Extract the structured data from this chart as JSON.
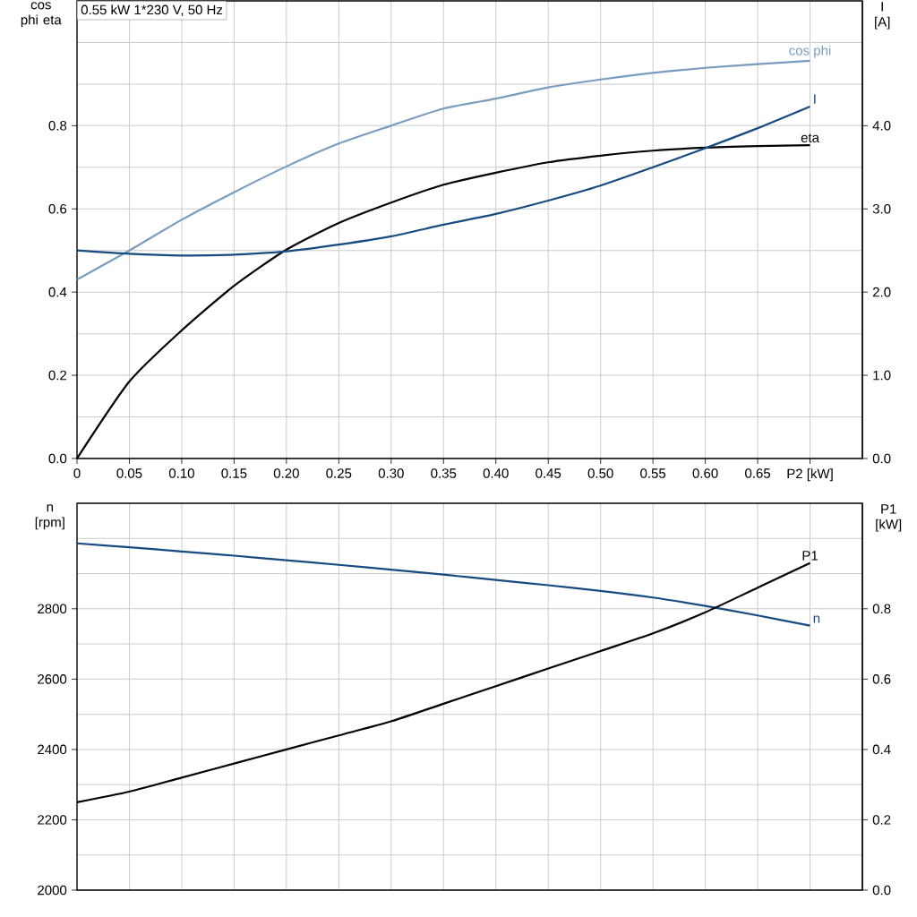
{
  "chart_data": [
    {
      "type": "line",
      "title": "0.55 kW   1*230 V, 50 Hz",
      "ylabel": "cos phi eta",
      "y2label": "I [A]",
      "grid": true,
      "x": [
        0,
        0.05,
        0.1,
        0.15,
        0.2,
        0.25,
        0.3,
        0.35,
        0.4,
        0.45,
        0.5,
        0.55,
        0.6,
        0.65,
        0.7
      ],
      "xlim": [
        0,
        0.75
      ],
      "xticks": [
        0,
        0.05,
        {
          "value": 0.1,
          "label": "0.10"
        },
        0.15,
        {
          "value": 0.2,
          "label": "0.20"
        },
        0.25,
        {
          "value": 0.3,
          "label": "0.30"
        },
        0.35,
        {
          "value": 0.4,
          "label": "0.40"
        },
        0.45,
        {
          "value": 0.5,
          "label": "0.50"
        },
        0.55,
        {
          "value": 0.6,
          "label": "0.60"
        },
        0.65,
        {
          "value": 0.7,
          "label": "P2 [kW]"
        }
      ],
      "ylim": [
        0,
        1.1
      ],
      "yticks": [
        {
          "value": 0,
          "label": "0.0"
        },
        {
          "value": 0.1,
          "label": null
        },
        0.2,
        {
          "value": 0.3,
          "label": null
        },
        0.4,
        {
          "value": 0.5,
          "label": null
        },
        0.6,
        {
          "value": 0.7,
          "label": null
        },
        0.8,
        {
          "value": 0.9,
          "label": null
        },
        {
          "value": 1.0,
          "label": null
        }
      ],
      "y2lim": [
        0,
        5.5
      ],
      "y2ticks": [
        {
          "value": 0,
          "label": "0.0"
        },
        {
          "value": 1,
          "label": "1.0"
        },
        {
          "value": 2,
          "label": "2.0"
        },
        {
          "value": 3,
          "label": "3.0"
        },
        {
          "value": 4,
          "label": "4.0"
        }
      ],
      "series": [
        {
          "name": "cos phi",
          "color": "#7a9cbf",
          "values": [
            0.43,
            0.5,
            0.574,
            0.64,
            0.702,
            0.757,
            0.8,
            0.841,
            0.865,
            0.892,
            0.911,
            0.927,
            0.939,
            0.948,
            0.956
          ]
        },
        {
          "name": "I",
          "color": "#174a80",
          "axis": "y2",
          "values": [
            2.5,
            2.46,
            2.44,
            2.45,
            2.49,
            2.57,
            2.67,
            2.81,
            2.94,
            3.1,
            3.28,
            3.5,
            3.73,
            3.97,
            4.23
          ]
        },
        {
          "name": "eta",
          "color": "#000000",
          "values": [
            0,
            0.185,
            0.308,
            0.415,
            0.502,
            0.566,
            0.615,
            0.658,
            0.687,
            0.712,
            0.728,
            0.74,
            0.747,
            0.751,
            0.753
          ]
        }
      ]
    },
    {
      "type": "line",
      "ylabel": "n [rpm]",
      "y2label": "P1 [kW]",
      "grid": true,
      "tick_labels": "y",
      "x": [
        0,
        0.05,
        0.1,
        0.15,
        0.2,
        0.25,
        0.3,
        0.35,
        0.4,
        0.45,
        0.5,
        0.55,
        0.6,
        0.65,
        0.7
      ],
      "xlim": [
        0,
        0.75
      ],
      "xticks": [
        0,
        0.05,
        0.1,
        0.15,
        0.2,
        0.25,
        0.3,
        0.35,
        0.4,
        0.45,
        0.5,
        0.55,
        0.6,
        0.65,
        0.7
      ],
      "ylim": [
        2000,
        3100
      ],
      "yticks": [
        2000,
        {
          "value": 2100,
          "label": null
        },
        2200,
        {
          "value": 2300,
          "label": null
        },
        2400,
        {
          "value": 2500,
          "label": null
        },
        2600,
        {
          "value": 2700,
          "label": null
        },
        2800,
        {
          "value": 2900,
          "label": null
        },
        {
          "value": 3000,
          "label": null
        }
      ],
      "y2lim": [
        0,
        1.1
      ],
      "y2ticks": [
        {
          "value": 0,
          "label": "0.0"
        },
        0.2,
        0.4,
        0.6,
        0.8
      ],
      "series": [
        {
          "name": "n",
          "color": "#174a80",
          "values": [
            2986,
            2975,
            2963,
            2951,
            2938,
            2925,
            2911,
            2897,
            2882,
            2867,
            2851,
            2832,
            2808,
            2781,
            2752
          ]
        },
        {
          "name": "P1",
          "color": "#000000",
          "axis": "y2",
          "values": [
            0.25,
            0.28,
            0.32,
            0.36,
            0.4,
            0.44,
            0.48,
            0.53,
            0.58,
            0.63,
            0.68,
            0.73,
            0.79,
            0.86,
            0.93
          ]
        }
      ]
    }
  ]
}
